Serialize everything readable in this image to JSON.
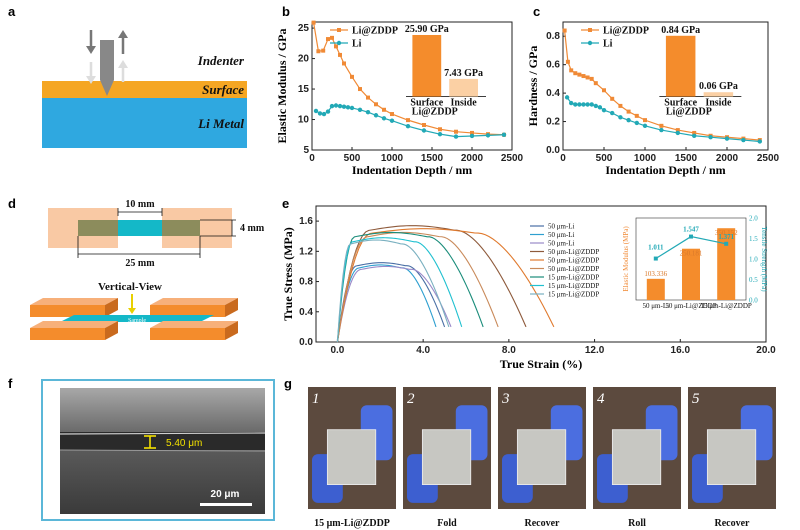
{
  "panels": {
    "a": "a",
    "b": "b",
    "c": "c",
    "d": "d",
    "e": "e",
    "f": "f",
    "g": "g"
  },
  "colors": {
    "orange": "#F08A36",
    "teal": "#22A9B6",
    "li_blue": "#2FA8E0",
    "surface_orange": "#F5A623",
    "cyan": "#14B8C8",
    "light_orange": "#F9C9A4",
    "box_orange": "#F48C2C"
  },
  "schematic_a": {
    "indenter_label": "Indenter",
    "surface_label": "Surface",
    "metal_label": "Li Metal"
  },
  "schematic_d": {
    "width_label": "10 mm",
    "length_label": "25 mm",
    "height_label": "4 mm",
    "view_label": "Vertical-View",
    "sample_label": "Sample"
  },
  "sem_f": {
    "thickness_label": "5.40 μm",
    "scale_label": "20 μm"
  },
  "photos_g": {
    "items": [
      {
        "num": "1",
        "caption": "15 μm-Li@ZDDP"
      },
      {
        "num": "2",
        "caption": "Fold"
      },
      {
        "num": "3",
        "caption": "Recover"
      },
      {
        "num": "4",
        "caption": "Roll"
      },
      {
        "num": "5",
        "caption": "Recover"
      }
    ]
  },
  "chart_data": [
    {
      "id": "b",
      "type": "line",
      "xlabel": "Indentation Depth / nm",
      "ylabel": "Elastic Modulus / GPa",
      "xlim": [
        0,
        2500
      ],
      "ylim": [
        5,
        26
      ],
      "xticks": [
        0,
        500,
        1000,
        1500,
        2000,
        2500
      ],
      "yticks": [
        5,
        10,
        15,
        20,
        25
      ],
      "series": [
        {
          "name": "Li@ZDDP",
          "x": [
            20,
            80,
            140,
            200,
            250,
            300,
            350,
            400,
            500,
            600,
            700,
            800,
            900,
            1000,
            1200,
            1400,
            1600,
            1800,
            2000,
            2200,
            2400
          ],
          "y": [
            25.9,
            21.2,
            21.3,
            23.2,
            23.4,
            22.0,
            20.6,
            19.2,
            17.0,
            15.0,
            13.6,
            12.5,
            11.6,
            10.9,
            9.9,
            9.1,
            8.4,
            8.0,
            7.8,
            7.6,
            7.5
          ]
        },
        {
          "name": "Li",
          "x": [
            50,
            100,
            150,
            200,
            250,
            300,
            350,
            400,
            450,
            500,
            600,
            700,
            800,
            900,
            1000,
            1200,
            1400,
            1600,
            1800,
            2000,
            2200,
            2400
          ],
          "y": [
            11.4,
            11.0,
            10.9,
            11.3,
            12.2,
            12.3,
            12.2,
            12.1,
            12.0,
            11.9,
            11.6,
            11.2,
            10.7,
            10.2,
            9.8,
            8.9,
            8.2,
            7.6,
            7.2,
            7.3,
            7.4,
            7.5
          ]
        }
      ],
      "inset": {
        "categories": [
          "Surface",
          "Inside"
        ],
        "group_label": "Li@ZDDP",
        "values": [
          25.9,
          7.43
        ],
        "labels": [
          "25.90 GPa",
          "7.43 GPa"
        ],
        "ymax": 28
      }
    },
    {
      "id": "c",
      "type": "line",
      "xlabel": "Indentation Depth / nm",
      "ylabel": "Hardness / GPa",
      "xlim": [
        0,
        2500
      ],
      "ylim": [
        0,
        0.9
      ],
      "xticks": [
        0,
        500,
        1000,
        1500,
        2000,
        2500
      ],
      "yticks": [
        0.0,
        0.2,
        0.4,
        0.6,
        0.8
      ],
      "series": [
        {
          "name": "Li@ZDDP",
          "x": [
            20,
            60,
            100,
            150,
            200,
            250,
            300,
            350,
            400,
            500,
            600,
            700,
            800,
            900,
            1000,
            1200,
            1400,
            1600,
            1800,
            2000,
            2200,
            2400
          ],
          "y": [
            0.84,
            0.62,
            0.56,
            0.54,
            0.53,
            0.52,
            0.51,
            0.5,
            0.47,
            0.42,
            0.36,
            0.31,
            0.27,
            0.24,
            0.21,
            0.17,
            0.14,
            0.12,
            0.1,
            0.09,
            0.08,
            0.07
          ]
        },
        {
          "name": "Li",
          "x": [
            50,
            100,
            150,
            200,
            250,
            300,
            350,
            400,
            450,
            500,
            600,
            700,
            800,
            900,
            1000,
            1200,
            1400,
            1600,
            1800,
            2000,
            2200,
            2400
          ],
          "y": [
            0.37,
            0.33,
            0.32,
            0.32,
            0.32,
            0.32,
            0.32,
            0.31,
            0.3,
            0.28,
            0.26,
            0.23,
            0.21,
            0.19,
            0.17,
            0.14,
            0.12,
            0.1,
            0.09,
            0.08,
            0.07,
            0.06
          ]
        }
      ],
      "inset": {
        "categories": [
          "Surface",
          "Inside"
        ],
        "group_label": "Li@ZDDP",
        "values": [
          0.84,
          0.06
        ],
        "labels": [
          "0.84 GPa",
          "0.06 GPa"
        ],
        "ymax": 0.92
      }
    },
    {
      "id": "e",
      "type": "line",
      "xlabel": "True Strain (%)",
      "ylabel": "True Stress (MPa)",
      "xlim": [
        -1,
        20
      ],
      "ylim": [
        0,
        1.8
      ],
      "xticks": [
        0.0,
        4.0,
        8.0,
        12.0,
        16.0,
        20.0
      ],
      "xtick_labels": [
        "0.0",
        "4.0",
        "8.0",
        "12.0",
        "16.0",
        "20.0"
      ],
      "yticks": [
        0.0,
        0.2,
        0.4,
        0.6,
        0.8,
        1.0,
        1.2,
        1.4,
        1.6
      ],
      "ytick_labels": [
        "0.0",
        "0.2",
        "0.4",
        "0.6",
        "0.8",
        "1.0",
        "1.2",
        "1.4",
        "1.6"
      ],
      "series": [
        {
          "name": "50 μm-Li",
          "color": "#4A6FA5",
          "peak": 1.05,
          "rise": 0.9,
          "plateau_end": 3.2,
          "end": 5.0
        },
        {
          "name": "50 μm-Li",
          "color": "#2E9FD0",
          "peak": 1.02,
          "rise": 1.0,
          "plateau_end": 3.0,
          "end": 4.6
        },
        {
          "name": "50 μm-Li",
          "color": "#9A8AC9",
          "peak": 1.0,
          "rise": 1.1,
          "plateau_end": 3.4,
          "end": 5.3
        },
        {
          "name": "50 μm-Li@ZDDP",
          "color": "#8E5A3B",
          "peak": 1.54,
          "rise": 1.5,
          "plateau_end": 5.5,
          "end": 8.8
        },
        {
          "name": "50 μm-Li@ZDDP",
          "color": "#E07A2E",
          "peak": 1.5,
          "rise": 1.6,
          "plateau_end": 6.5,
          "end": 10.1
        },
        {
          "name": "50 μm-Li@ZDDP",
          "color": "#C98A5A",
          "peak": 1.45,
          "rise": 1.4,
          "plateau_end": 4.8,
          "end": 7.5
        },
        {
          "name": "15 μm-Li@ZDDP",
          "color": "#1A8C7A",
          "peak": 1.45,
          "rise": 0.8,
          "plateau_end": 4.2,
          "end": 6.8
        },
        {
          "name": "15 μm-Li@ZDDP",
          "color": "#20C0D0",
          "peak": 1.38,
          "rise": 0.7,
          "plateau_end": 3.6,
          "end": 5.8
        },
        {
          "name": "15 μm-Li@ZDDP",
          "color": "#7AB0C0",
          "peak": 1.35,
          "rise": 0.6,
          "plateau_end": 3.0,
          "end": 5.2
        }
      ],
      "inset": {
        "categories": [
          "50 μm-Li",
          "50 μm-Li@ZDDP",
          "15 μm-Li@ZDDP"
        ],
        "bar_values": [
          103.336,
          250.181,
          350.152
        ],
        "bar_labels": [
          "103.336",
          "250.181",
          "350.152"
        ],
        "line_values": [
          1.011,
          1.547,
          1.371
        ],
        "line_labels": [
          "1.011",
          "1.547",
          "1.371"
        ],
        "left_ylabel": "Elastic Modulus (MPa)",
        "right_ylabel": "Tensile Strength (MPa)",
        "left_max": 400,
        "right_max": 2.0,
        "right_ticks": [
          "2.0",
          "1.5",
          "1.0",
          "0.5",
          "0.0"
        ]
      }
    }
  ]
}
